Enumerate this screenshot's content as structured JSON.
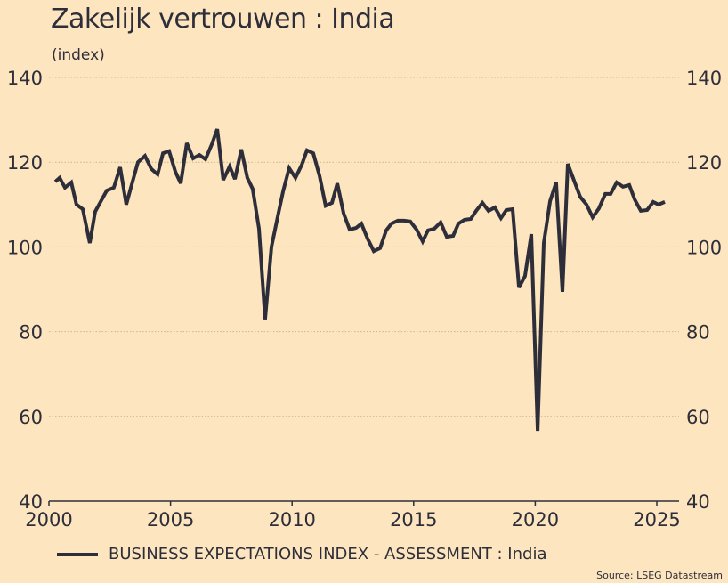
{
  "chart_data": {
    "type": "line",
    "title": "Zakelijk vertrouwen : India",
    "subtitle": "(index)",
    "xlabel": "",
    "ylabel": "(index)",
    "xlim": [
      2000,
      2025
    ],
    "ylim": [
      40,
      140
    ],
    "x_ticks": [
      "2000",
      "2005",
      "2010",
      "2015",
      "2020",
      "2025"
    ],
    "y_ticks": [
      "40",
      "60",
      "80",
      "100",
      "120",
      "140"
    ],
    "grid": true,
    "legend_position": "bottom-left",
    "source": "Source: LSEG Datastream",
    "colors": {
      "background": "#fde6bf",
      "line": "#2e2e3a",
      "grid": "#c9b48f"
    },
    "series": [
      {
        "name": "BUSINESS EXPECTATIONS INDEX - ASSESSMENT : India",
        "x": [
          2000.26,
          2000.44,
          2000.66,
          2000.92,
          2001.13,
          2001.39,
          2001.68,
          2001.9,
          2002.12,
          2002.38,
          2002.67,
          2002.93,
          2003.18,
          2003.4,
          2003.66,
          2003.95,
          2004.21,
          2004.47,
          2004.69,
          2004.94,
          2005.2,
          2005.42,
          2005.67,
          2005.93,
          2006.19,
          2006.44,
          2006.7,
          2006.92,
          2007.17,
          2007.43,
          2007.65,
          2007.91,
          2008.16,
          2008.38,
          2008.64,
          2008.89,
          2009.15,
          2009.41,
          2009.63,
          2009.88,
          2010.14,
          2010.4,
          2010.61,
          2010.87,
          2011.13,
          2011.38,
          2011.64,
          2011.86,
          2012.12,
          2012.37,
          2012.63,
          2012.85,
          2013.1,
          2013.36,
          2013.62,
          2013.87,
          2014.09,
          2014.35,
          2014.6,
          2014.86,
          2015.12,
          2015.37,
          2015.59,
          2015.85,
          2016.11,
          2016.36,
          2016.62,
          2016.84,
          2017.09,
          2017.35,
          2017.57,
          2017.83,
          2018.08,
          2018.34,
          2018.59,
          2018.81,
          2019.07,
          2019.33,
          2019.58,
          2019.84,
          2020.1,
          2020.35,
          2020.61,
          2020.86,
          2021.12,
          2021.34,
          2021.6,
          2021.85,
          2022.11,
          2022.36,
          2022.62,
          2022.88,
          2023.1,
          2023.35,
          2023.61,
          2023.87,
          2024.09,
          2024.34,
          2024.6,
          2024.85,
          2025.07,
          2025.33
        ],
        "values": [
          115.4,
          116.3,
          114.0,
          115.2,
          110.0,
          108.9,
          100.9,
          108.3,
          110.6,
          113.3,
          114.0,
          118.8,
          110.0,
          114.6,
          120.0,
          121.5,
          118.4,
          117.1,
          122.1,
          122.6,
          117.7,
          115.0,
          124.5,
          120.9,
          121.7,
          120.7,
          124.2,
          127.8,
          115.8,
          119.0,
          116.0,
          123.0,
          116.3,
          113.7,
          104.3,
          82.9,
          100.0,
          107.2,
          113.1,
          118.6,
          116.3,
          119.4,
          122.8,
          122.1,
          116.7,
          109.7,
          110.4,
          115.0,
          107.9,
          104.1,
          104.5,
          105.5,
          102.0,
          99.0,
          99.7,
          103.9,
          105.5,
          106.2,
          106.2,
          106.0,
          104.1,
          101.3,
          103.9,
          104.3,
          105.8,
          102.4,
          102.6,
          105.5,
          106.4,
          106.6,
          108.5,
          110.4,
          108.5,
          109.3,
          106.8,
          108.7,
          108.9,
          90.4,
          93.1,
          103.0,
          56.6,
          100.9,
          110.8,
          115.2,
          89.4,
          119.6,
          115.6,
          111.8,
          110.0,
          107.0,
          109.1,
          112.5,
          112.5,
          115.2,
          114.2,
          114.6,
          111.2,
          108.5,
          108.7,
          110.6,
          110.0,
          110.6
        ]
      }
    ]
  }
}
